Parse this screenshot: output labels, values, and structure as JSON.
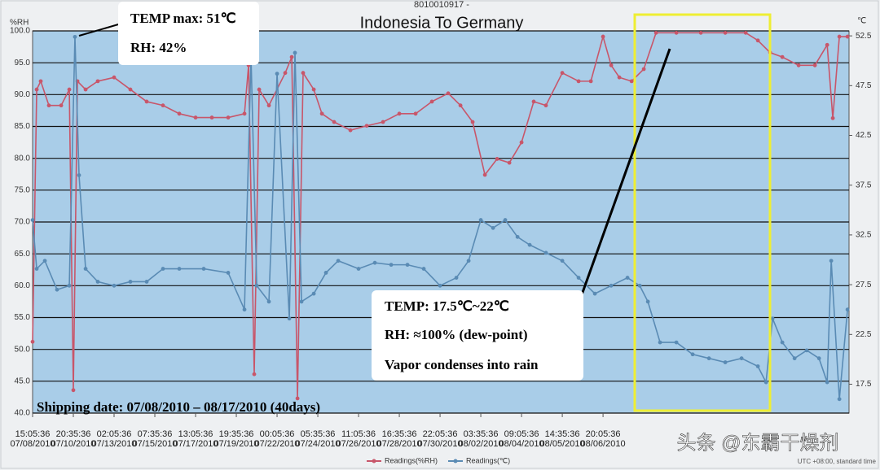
{
  "chart_data": {
    "type": "line",
    "title": "Indonesia To Germany",
    "subtitle": "8010010917 -",
    "y_label": "%RH",
    "y2_label": "℃",
    "xlim": [
      0,
      1072
    ],
    "xticks": [
      {
        "value": 0,
        "label": "15:05:36\n07/08/2010"
      },
      {
        "value": 53.5,
        "label": "20:35:36\n07/10/2010"
      },
      {
        "value": 107,
        "label": "02:05:36\n07/13/2010"
      },
      {
        "value": 160.5,
        "label": "07:35:36\n07/15/2010"
      },
      {
        "value": 214,
        "label": "13:05:36\n07/17/2010"
      },
      {
        "value": 267.5,
        "label": "19:35:36\n07/19/2010"
      },
      {
        "value": 321,
        "label": "00:05:36\n07/22/2010"
      },
      {
        "value": 374.5,
        "label": "05:35:36\n07/24/2010"
      },
      {
        "value": 428,
        "label": "11:05:36\n07/26/2010"
      },
      {
        "value": 481.5,
        "label": "16:35:36\n07/28/2010"
      },
      {
        "value": 535,
        "label": "22:05:36\n07/30/2010"
      },
      {
        "value": 588.5,
        "label": "03:35:36\n08/02/2010"
      },
      {
        "value": 642,
        "label": "09:05:36\n08/04/2010"
      },
      {
        "value": 695.5,
        "label": "14:35:36\n08/05/2010"
      },
      {
        "value": 749,
        "label": "20:05:36\n08/06/2010"
      }
    ],
    "ylim": [
      40,
      100
    ],
    "yticks": [
      {
        "value": 100,
        "label": "100.0"
      },
      {
        "value": 95,
        "label": "95.0"
      },
      {
        "value": 90,
        "label": "90.0"
      },
      {
        "value": 85,
        "label": "85.0"
      },
      {
        "value": 80,
        "label": "80.0"
      },
      {
        "value": 75,
        "label": "75.0"
      },
      {
        "value": 70,
        "label": "70.0"
      },
      {
        "value": 65,
        "label": "65.0"
      },
      {
        "value": 60,
        "label": "60.0"
      },
      {
        "value": 55,
        "label": "55.0"
      },
      {
        "value": 50,
        "label": "50.0"
      },
      {
        "value": 45,
        "label": "45.0"
      },
      {
        "value": 40,
        "label": "40.0"
      }
    ],
    "y2lim": [
      14.6,
      53
    ],
    "y2ticks": [
      52.5,
      47.5,
      42.5,
      37.5,
      32.5,
      27.5,
      22.5,
      17.5
    ],
    "grid": true,
    "series": [
      {
        "name": "Readings(%RH)",
        "color": "#c8566a",
        "x": [
          0,
          5.4,
          10.7,
          21.4,
          37.5,
          48.2,
          53.5,
          58.9,
          69.6,
          85.6,
          107,
          128.4,
          149.8,
          171.2,
          192.6,
          214,
          235.4,
          256.8,
          278.2,
          283.6,
          291,
          297.5,
          310.3,
          331.7,
          340.3,
          347.8,
          355.2,
          369.2,
          379.9,
          395.9,
          417.3,
          438.7,
          460.1,
          481.5,
          502.9,
          524.3,
          545.7,
          561.8,
          577.8,
          593.9,
          609.9,
          626,
          642,
          658,
          674,
          695.5,
          716.9,
          733,
          749,
          759.7,
          770.4,
          786.5,
          802.5,
          818.6,
          845.3,
          877.4,
          909.5,
          936.3,
          952.3,
          968.4,
          984.4,
          1005.8,
          1027.2,
          1043.3,
          1050.7,
          1059.3,
          1070
        ],
        "values": [
          51.2,
          90.8,
          92.1,
          88.3,
          88.3,
          90.8,
          43.6,
          92.1,
          90.8,
          92.1,
          92.7,
          90.8,
          88.9,
          88.3,
          87.0,
          86.4,
          86.4,
          86.4,
          87.0,
          94.6,
          46.1,
          90.8,
          88.3,
          93.4,
          95.9,
          42.3,
          93.4,
          90.8,
          87.0,
          85.7,
          84.4,
          85.1,
          85.7,
          87.0,
          87.0,
          88.9,
          90.2,
          88.3,
          85.7,
          77.4,
          79.9,
          79.3,
          82.5,
          88.9,
          88.3,
          93.4,
          92.1,
          92.1,
          99.1,
          94.6,
          92.7,
          92.1,
          94.0,
          99.7,
          99.7,
          99.7,
          99.7,
          99.7,
          98.5,
          96.6,
          95.9,
          94.6,
          94.6,
          97.8,
          86.3,
          99.1,
          99.1
        ]
      },
      {
        "name": "Readings(℃)",
        "color": "#5a8bb4",
        "axis": "y2",
        "x": [
          0,
          5.4,
          16.1,
          32.1,
          48.2,
          55.6,
          61,
          69.6,
          85.6,
          107,
          128.4,
          149.8,
          171.2,
          192.6,
          224.7,
          256.8,
          278.2,
          286.8,
          294.3,
          310.3,
          321,
          337.1,
          344.5,
          353.1,
          369.2,
          385.2,
          401.3,
          428,
          449.4,
          470.8,
          492.2,
          513.6,
          535,
          556.4,
          572.5,
          588.5,
          604.6,
          620.6,
          636.7,
          652.7,
          674.1,
          695.5,
          716.9,
          738.3,
          759.7,
          781.1,
          797.2,
          807.9,
          823.9,
          845.3,
          866.7,
          888.1,
          909.5,
          930.9,
          952.3,
          963,
          971.6,
          984.4,
          1000.5,
          1016.5,
          1032.6,
          1043.3,
          1048.6,
          1059.3,
          1070
        ],
        "values": [
          34.0,
          29.1,
          29.9,
          27.0,
          27.4,
          52.4,
          38.5,
          29.1,
          27.8,
          27.4,
          27.8,
          27.8,
          29.1,
          29.1,
          29.1,
          28.7,
          25.0,
          50.4,
          27.4,
          25.8,
          48.7,
          24.1,
          50.8,
          25.8,
          26.6,
          28.7,
          29.9,
          29.1,
          29.7,
          29.5,
          29.5,
          29.1,
          27.4,
          28.2,
          29.9,
          34.0,
          33.2,
          34.0,
          32.3,
          31.5,
          30.7,
          29.9,
          28.2,
          26.6,
          27.4,
          28.2,
          27.4,
          25.8,
          21.7,
          21.7,
          20.5,
          20.1,
          19.7,
          20.1,
          19.3,
          17.7,
          24.1,
          21.7,
          20.1,
          20.9,
          20.1,
          17.7,
          29.9,
          16.0,
          25.0
        ]
      }
    ],
    "annotations": [
      "TEMP max: 51℃",
      "RH: 42%",
      "TEMP: 17.5℃~22℃",
      "RH: ≈100% (dew-point)",
      "Vapor condenses into rain",
      "Shipping date: 07/08/2010  –  08/17/2010 (40days)"
    ],
    "footnote": "UTC +08:00, standard time",
    "watermark": "头条 @东霸干燥剂"
  }
}
